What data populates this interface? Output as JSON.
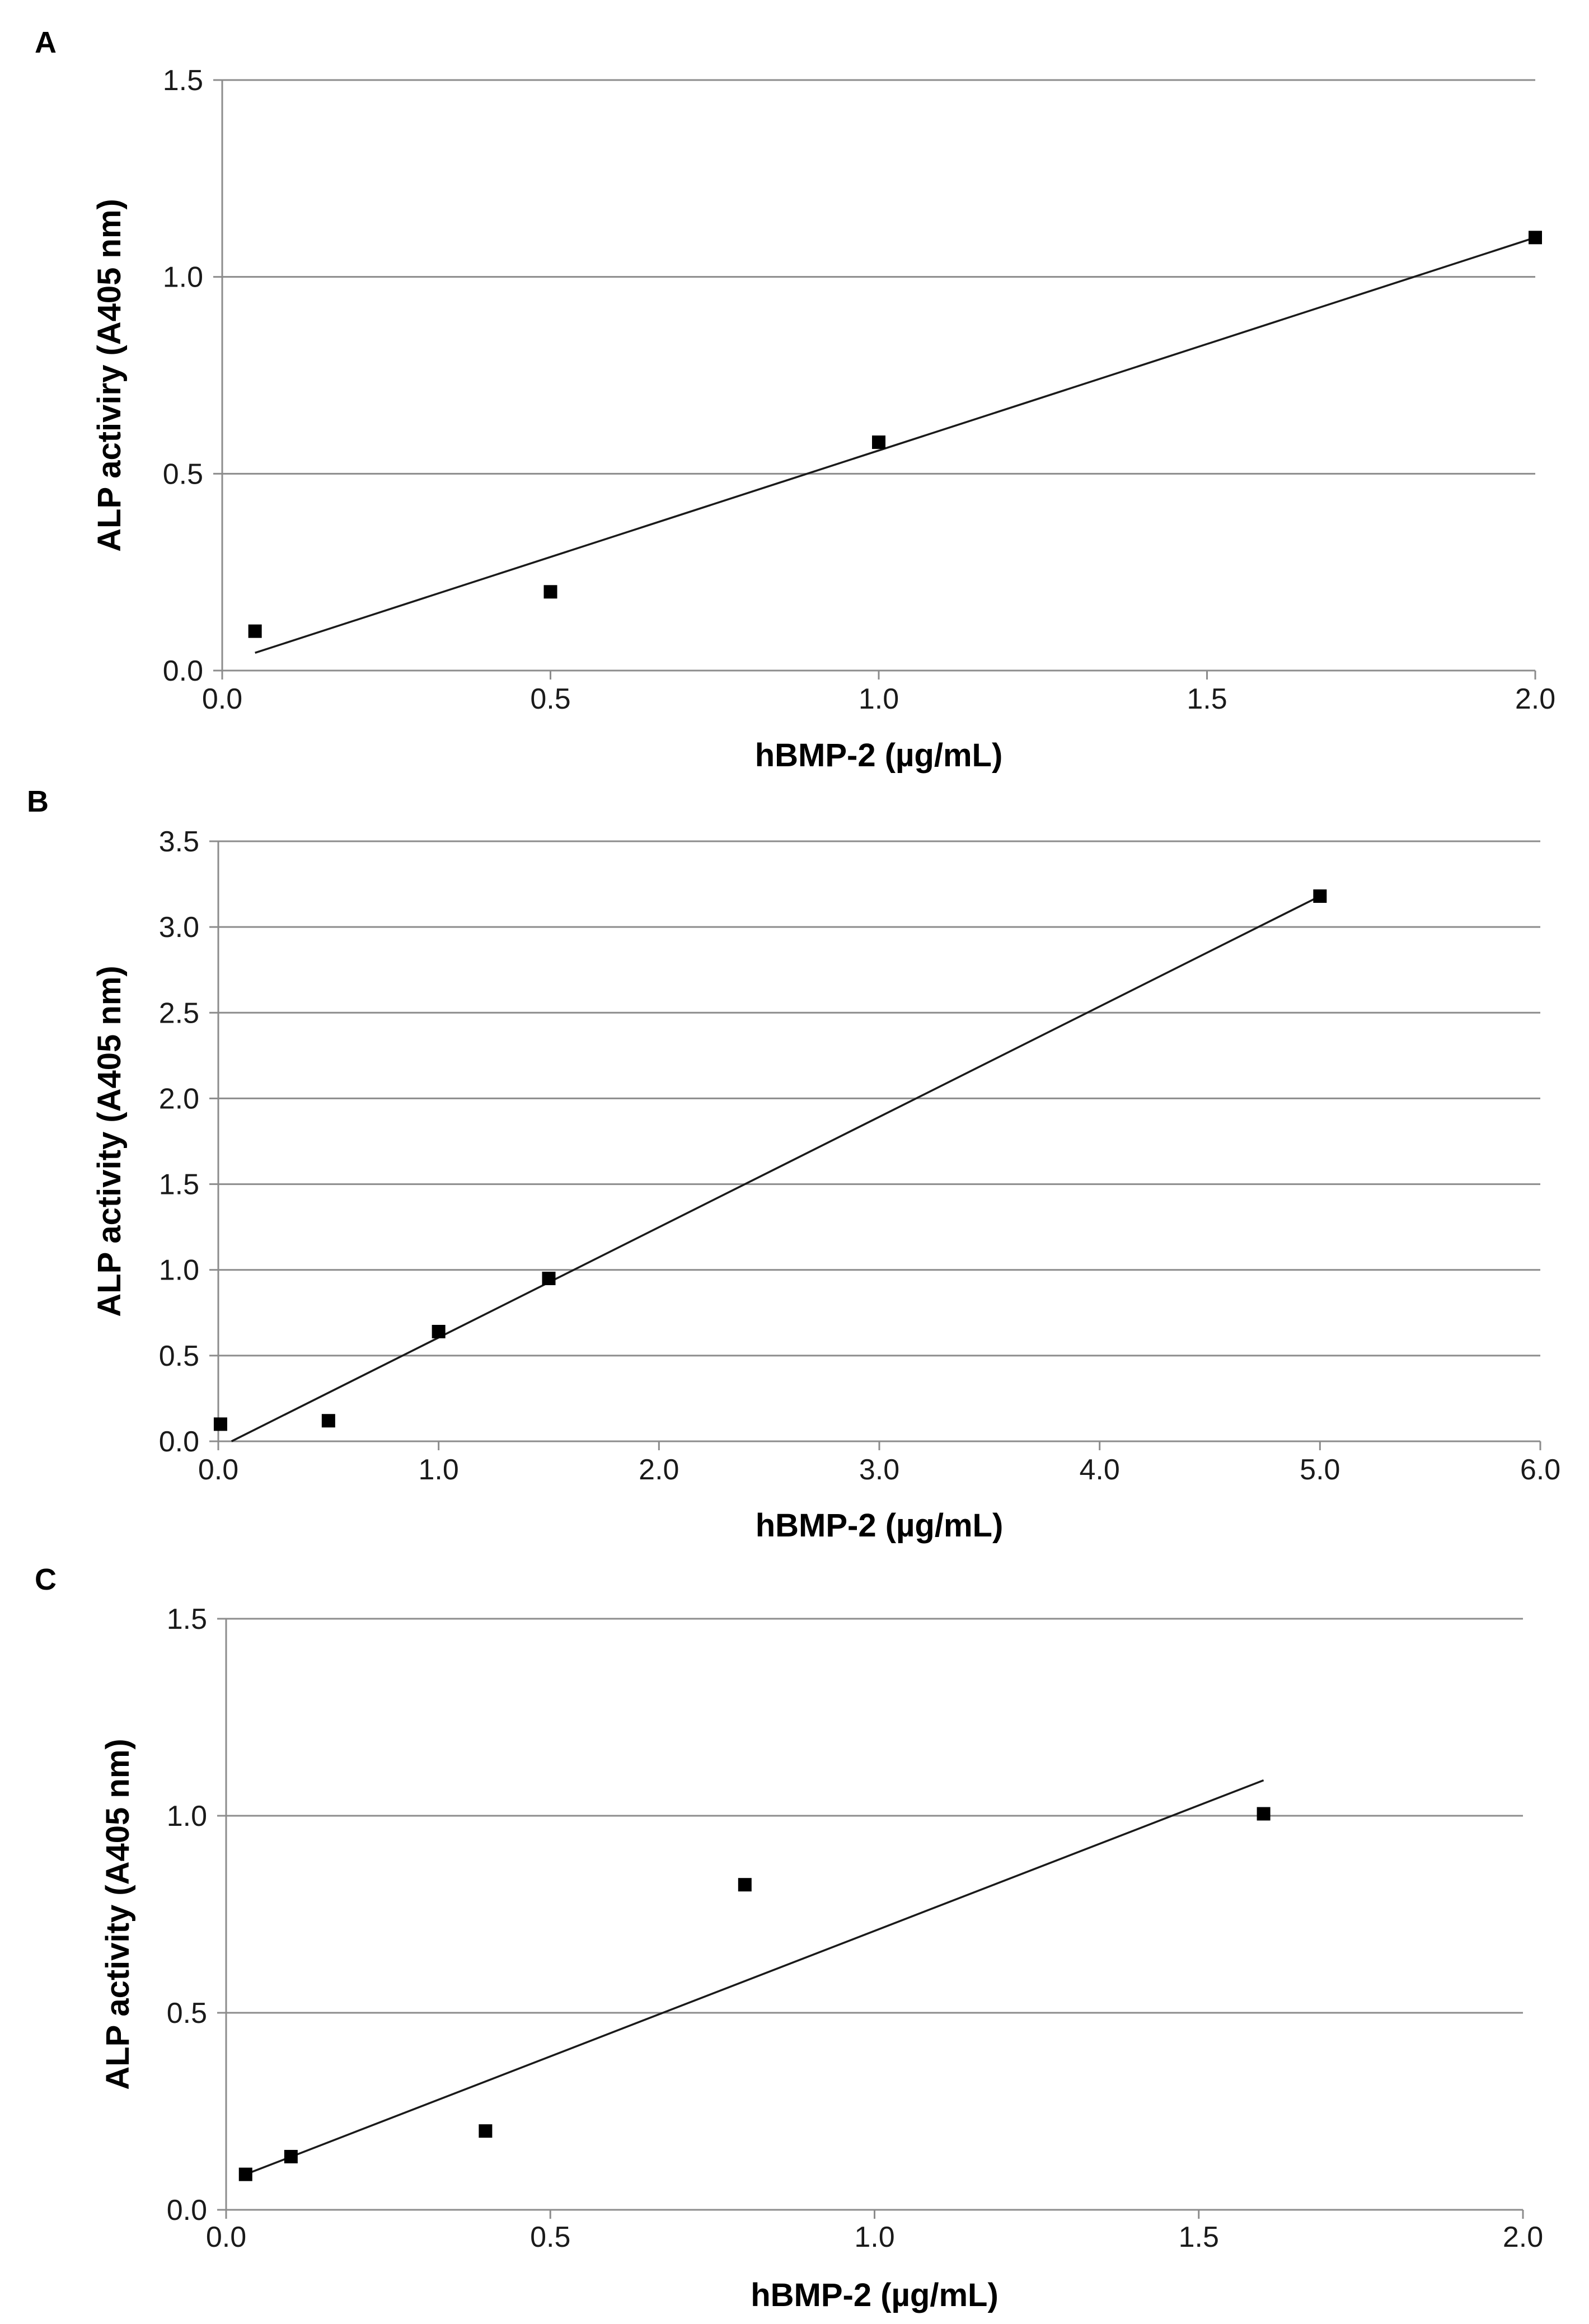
{
  "chart_data": [
    {
      "panel": "A",
      "type": "scatter",
      "title": "",
      "xlabel": "hBMP-2 (µg/mL)",
      "ylabel": "ALP activiry (A405 nm)",
      "xlim": [
        0,
        2
      ],
      "ylim": [
        0,
        1.5
      ],
      "xticks": [
        "0.0",
        "0.5",
        "1.0",
        "1.5",
        "2.0"
      ],
      "yticks": [
        "0.0",
        "0.5",
        "1.0",
        "1.5"
      ],
      "grid": true,
      "series": [
        {
          "name": "ALP activity",
          "x": [
            0.05,
            0.5,
            1.0,
            2.0
          ],
          "y": [
            0.1,
            0.2,
            0.58,
            1.1
          ],
          "marker": "square",
          "color": "#000000"
        }
      ],
      "trendline": {
        "type": "linear",
        "x": [
          0.05,
          2.0
        ],
        "y": [
          0.045,
          1.1
        ]
      }
    },
    {
      "panel": "B",
      "type": "scatter",
      "title": "",
      "xlabel": "hBMP-2 (µg/mL)",
      "ylabel": "ALP activity (A405 nm)",
      "xlim": [
        0,
        6
      ],
      "ylim": [
        0,
        3.5
      ],
      "xticks": [
        "0.0",
        "1.0",
        "2.0",
        "3.0",
        "4.0",
        "5.0",
        "6.0"
      ],
      "yticks": [
        "0.0",
        "0.5",
        "1.0",
        "1.5",
        "2.0",
        "2.5",
        "3.0",
        "3.5"
      ],
      "grid": true,
      "series": [
        {
          "name": "ALP activity",
          "x": [
            0.01,
            0.5,
            1.0,
            1.5,
            5.0
          ],
          "y": [
            0.1,
            0.12,
            0.64,
            0.95,
            3.18
          ],
          "marker": "square",
          "color": "#000000"
        }
      ],
      "trendline": {
        "type": "linear",
        "x": [
          0.06,
          5.0
        ],
        "y": [
          0.0,
          3.18
        ]
      }
    },
    {
      "panel": "C",
      "type": "scatter",
      "title": "",
      "xlabel": "hBMP-2 (µg/mL)",
      "ylabel": "ALP activity (A405 nm)",
      "xlim": [
        0,
        2
      ],
      "ylim": [
        0,
        1.5
      ],
      "xticks": [
        "0.0",
        "0.5",
        "1.0",
        "1.5",
        "2.0"
      ],
      "yticks": [
        "0.0",
        "0.5",
        "1.0",
        "1.5"
      ],
      "grid": true,
      "series": [
        {
          "name": "ALP activity",
          "x": [
            0.03,
            0.1,
            0.4,
            0.8,
            1.6
          ],
          "y": [
            0.09,
            0.135,
            0.2,
            0.825,
            1.005
          ],
          "marker": "square",
          "color": "#000000"
        }
      ],
      "trendline": {
        "type": "linear",
        "x": [
          0.03,
          1.6
        ],
        "y": [
          0.09,
          1.09
        ]
      }
    }
  ]
}
